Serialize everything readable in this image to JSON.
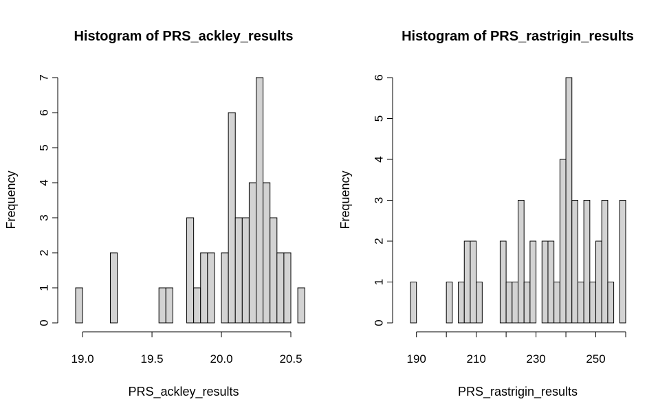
{
  "chart_data": [
    {
      "type": "bar",
      "title": "Histogram of PRS_ackley_results",
      "xlabel": "PRS_ackley_results",
      "ylabel": "Frequency",
      "bin_start": 18.95,
      "bin_width": 0.05,
      "values": [
        1,
        0,
        0,
        0,
        0,
        2,
        0,
        0,
        0,
        0,
        0,
        0,
        1,
        1,
        0,
        0,
        3,
        1,
        2,
        2,
        0,
        2,
        6,
        3,
        3,
        4,
        7,
        4,
        3,
        2,
        2,
        0,
        1
      ],
      "xlim": [
        18.95,
        20.5
      ],
      "ylim": [
        0,
        7
      ],
      "xticks": [
        19.0,
        19.5,
        20.0,
        20.5
      ],
      "xtick_labels": [
        "19.0",
        "19.5",
        "20.0",
        "20.5"
      ],
      "yticks": [
        0,
        1,
        2,
        3,
        4,
        5,
        6,
        7
      ],
      "ytick_labels": [
        "0",
        "1",
        "2",
        "3",
        "4",
        "5",
        "6",
        "7"
      ]
    },
    {
      "type": "bar",
      "title": "Histogram of PRS_rastrigin_results",
      "xlabel": "PRS_rastrigin_results",
      "ylabel": "Frequency",
      "bin_start": 188,
      "bin_width": 2,
      "values": [
        1,
        0,
        0,
        0,
        0,
        0,
        1,
        0,
        1,
        2,
        2,
        1,
        0,
        0,
        0,
        2,
        1,
        1,
        3,
        1,
        2,
        0,
        2,
        2,
        1,
        4,
        6,
        3,
        1,
        3,
        1,
        2,
        3,
        1,
        0,
        3
      ],
      "xlim": [
        188,
        260
      ],
      "ylim": [
        0,
        6
      ],
      "xticks": [
        190,
        200,
        210,
        220,
        230,
        240,
        250,
        260
      ],
      "xtick_labels": [
        "190",
        "",
        "210",
        "",
        "230",
        "",
        "250",
        ""
      ],
      "yticks": [
        0,
        1,
        2,
        3,
        4,
        5,
        6
      ],
      "ytick_labels": [
        "0",
        "1",
        "2",
        "3",
        "4",
        "5",
        "6"
      ]
    }
  ]
}
